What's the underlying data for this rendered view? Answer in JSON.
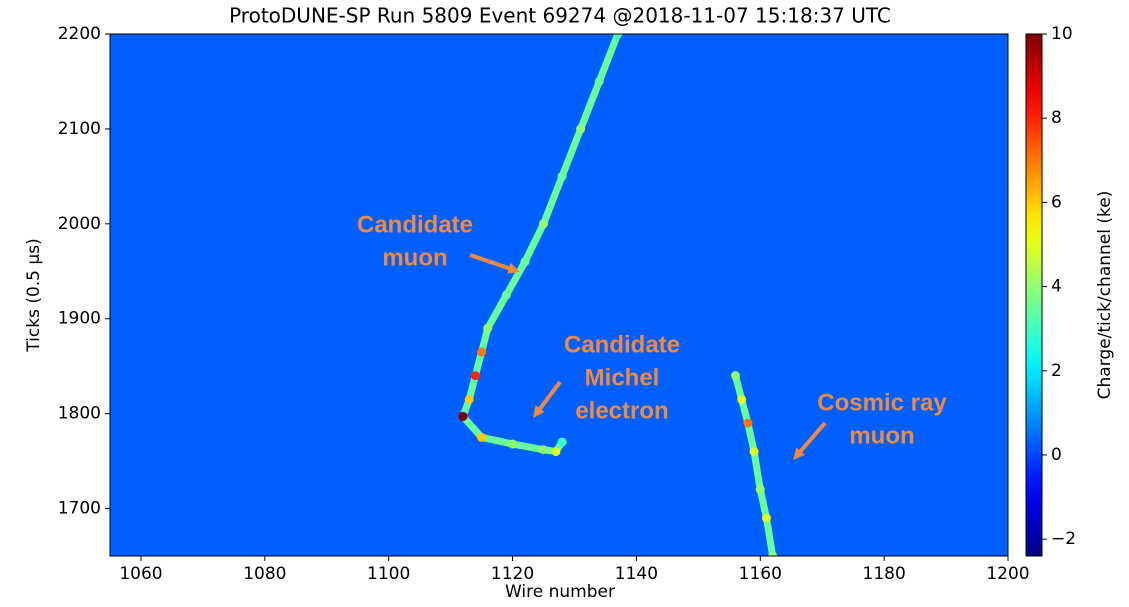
{
  "chart_data": {
    "type": "event-display",
    "title": "ProtoDUNE-SP Run 5809 Event 69274 @2018-11-07 15:18:37 UTC",
    "x_label": "Wire number",
    "y_label": "Ticks (0.5 μs)",
    "xlim": [
      1055,
      1200
    ],
    "xticks": [
      1060,
      1080,
      1100,
      1120,
      1140,
      1160,
      1180,
      1200
    ],
    "ylim": [
      1650,
      2200
    ],
    "yticks": [
      1700,
      1800,
      1900,
      2000,
      2100,
      2200
    ],
    "colormap": "jet",
    "background_charge": 0.3,
    "clim": [
      -2.4,
      10
    ],
    "cticks": [
      {
        "value": -2,
        "label": "−2"
      },
      0,
      2,
      4,
      6,
      8,
      10
    ],
    "colorbar_label": "Charge/tick/channel (ke)",
    "tracks": [
      {
        "x": [
          1137,
          1134,
          1131,
          1128,
          1125,
          1122,
          1119,
          1116,
          1115,
          1114,
          1113,
          1112
        ],
        "y": [
          2200,
          2150,
          2100,
          2050,
          2000,
          1960,
          1925,
          1890,
          1865,
          1840,
          1815,
          1797
        ],
        "charge": [
          3,
          3.5,
          4,
          3.5,
          4,
          3.5,
          3.5,
          4,
          7,
          8,
          6,
          10
        ]
      },
      {
        "x": [
          1112,
          1115,
          1120,
          1125,
          1127,
          1128
        ],
        "y": [
          1797,
          1775,
          1768,
          1762,
          1760,
          1770
        ],
        "charge": [
          10,
          6,
          4,
          4,
          5,
          3
        ]
      },
      {
        "x": [
          1156,
          1157,
          1158,
          1159,
          1160,
          1161,
          1162
        ],
        "y": [
          1840,
          1815,
          1790,
          1760,
          1720,
          1690,
          1650
        ],
        "charge": [
          4,
          5,
          7,
          5,
          4,
          5,
          4
        ]
      }
    ],
    "annotations": [
      {
        "lines": [
          "Candidate",
          "muon"
        ],
        "color": "#f08a3c"
      },
      {
        "lines": [
          "Candidate",
          "Michel",
          "electron"
        ],
        "color": "#f08a3c"
      },
      {
        "lines": [
          "Cosmic ray",
          "muon"
        ],
        "color": "#f08a3c"
      }
    ]
  }
}
